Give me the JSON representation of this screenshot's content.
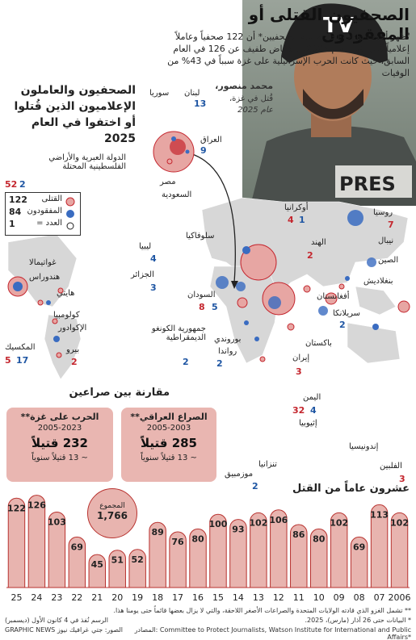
{
  "header": {
    "title": "الصحفيون القتلى أو المفقودون",
    "intro": "تُظهر أحدث بيانات لجنة حماية الصحفيين* أن 122 صحفياً وعاملاً إعلامياً قُتلوا في العام 2025، بانخفاض طفيف عن 126 في العام السابق، حيث كانت الحرب الإسرائيلية على غزة سبباً في 43% من الوفيات"
  },
  "photo_caption": {
    "name": "محمد منصور،",
    "line1": "قُتل في غزة،",
    "line2": "عام 2025",
    "helmet_text": "TV",
    "vest_text": "PRES"
  },
  "map_section": {
    "title_line1": "الصحفيون والعاملون",
    "title_line2": "الإعلاميون الذين قُتلوا",
    "title_line3": "أو اختفوا في العام 2025"
  },
  "legend": {
    "killed_label": "القتلى",
    "missing_label": "المفقودون",
    "count_label": "العدد =",
    "killed_value": "122",
    "missing_value": "84",
    "count_value": "1",
    "killed_color": "#c4262e",
    "missing_color": "#3a6cc1"
  },
  "countries": [
    {
      "name": "الدولة العبرية والأراضي",
      "name2": "الفلسطينية المحتلة",
      "killed": "52",
      "missing": "2"
    },
    {
      "name": "لبنان",
      "killed": "",
      "missing": "13"
    },
    {
      "name": "سوريا",
      "killed": "",
      "missing": ""
    },
    {
      "name": "العراق",
      "killed": "",
      "missing": "9"
    },
    {
      "name": "مصر",
      "killed": "",
      "missing": ""
    },
    {
      "name": "السعودية",
      "killed": "",
      "missing": ""
    },
    {
      "name": "أوكرانيا",
      "killed": "4",
      "missing": "1"
    },
    {
      "name": "روسيا",
      "killed": "7",
      "missing": ""
    },
    {
      "name": "سلوفاكيا",
      "killed": "",
      "missing": ""
    },
    {
      "name": "الهند",
      "killed": "2",
      "missing": ""
    },
    {
      "name": "نيبال",
      "killed": "",
      "missing": ""
    },
    {
      "name": "الصين",
      "killed": "",
      "missing": ""
    },
    {
      "name": "بنغلاديش",
      "killed": "",
      "missing": ""
    },
    {
      "name": "أفغانستان",
      "killed": "",
      "missing": ""
    },
    {
      "name": "سريلانكا",
      "killed": "",
      "missing": "2"
    },
    {
      "name": "باكستان",
      "killed": "",
      "missing": ""
    },
    {
      "name": "ليبيا",
      "killed": "",
      "missing": "4"
    },
    {
      "name": "الجزائر",
      "killed": "",
      "missing": "3"
    },
    {
      "name": "السودان",
      "killed": "8",
      "missing": "5"
    },
    {
      "name": "جمهورية الكونغو الديمقراطية",
      "killed": "",
      "missing": "2"
    },
    {
      "name": "بوروندي",
      "killed": "",
      "missing": ""
    },
    {
      "name": "رواندا",
      "killed": "",
      "missing": "2"
    },
    {
      "name": "إيران",
      "killed": "3",
      "missing": ""
    },
    {
      "name": "اليمن",
      "killed": "32",
      "missing": "4"
    },
    {
      "name": "إثيوبيا",
      "killed": "",
      "missing": ""
    },
    {
      "name": "تنزانيا",
      "killed": "",
      "missing": ""
    },
    {
      "name": "موزمبيق",
      "killed": "",
      "missing": "2"
    },
    {
      "name": "إندونيسيا",
      "killed": "",
      "missing": ""
    },
    {
      "name": "الفلبين",
      "killed": "3",
      "missing": ""
    },
    {
      "name": "غواتيمالا",
      "killed": "",
      "missing": ""
    },
    {
      "name": "هندوراس",
      "killed": "",
      "missing": ""
    },
    {
      "name": "هايتي",
      "killed": "",
      "missing": ""
    },
    {
      "name": "كولومبيا",
      "killed": "",
      "missing": ""
    },
    {
      "name": "الإكوادور",
      "killed": "",
      "missing": ""
    },
    {
      "name": "بيرو",
      "killed": "2",
      "missing": ""
    },
    {
      "name": "المكسيك",
      "killed": "5",
      "missing": "17"
    }
  ],
  "comparison": {
    "title": "مقارنة بين صراعين",
    "gaza": {
      "title": "الحرب على غزة**",
      "years": "2005-2023",
      "total": "232 قتيلاً",
      "per_year": "~ 13 قتيلاً سنوياً"
    },
    "iraq": {
      "title": "الصراع العراقي**",
      "years": "2005-2003",
      "total": "285 قتيلاً",
      "per_year": "~ 13 قتيلاً سنوياً"
    }
  },
  "chart_section": {
    "title": "عشرون عاماً من القتل",
    "total_label": "المجموع",
    "total_value": "1,766"
  },
  "chart_data": {
    "type": "bar",
    "title": "عشرون عاماً من القتل",
    "categories": [
      "25",
      "24",
      "23",
      "22",
      "21",
      "20",
      "19",
      "18",
      "17",
      "16",
      "15",
      "14",
      "13",
      "12",
      "11",
      "10",
      "09",
      "08",
      "07",
      "2006"
    ],
    "values": [
      122,
      126,
      103,
      69,
      45,
      51,
      52,
      89,
      76,
      80,
      100,
      93,
      102,
      106,
      86,
      80,
      102,
      69,
      113,
      102
    ],
    "ylim": [
      0,
      130
    ],
    "bar_fill": "#e8b4af",
    "bar_stroke": "#b8322f"
  },
  "footer": {
    "note1": "** تشمل الغزو الذي قادته الولايات المتحدة والصراعات الأصغر اللاحقة، والتي لا يزال بعضها قائماً حتى يومنا هذا.",
    "note2": "* البيانات حتى 26 آذار (مارس)، 2025.",
    "sources": "المصادر: Committee to Protect Journalists, Watson Institute for International and Public Affairs*",
    "credit_photo": "الرسم نُفذ في 4 كانون الأول (ديسمبر)",
    "credit_agency": "GRAPHIC NEWS  غرافيك نيوز",
    "credit_label": "الصور: جتي"
  }
}
